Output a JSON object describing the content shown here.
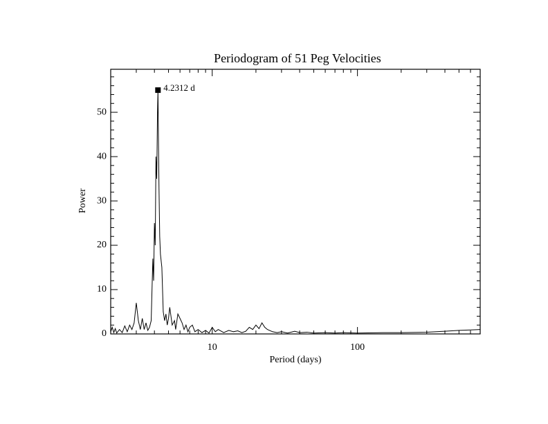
{
  "chart_data": {
    "type": "line",
    "title": "Periodogram of 51 Peg Velocities",
    "x_label": "Period (days)",
    "y_label": "Power",
    "xscale": "log",
    "xlim": [
      2,
      700
    ],
    "ylim": [
      0,
      59.7
    ],
    "xticks": [
      10,
      100
    ],
    "yticks": [
      0,
      10,
      20,
      30,
      40,
      50
    ],
    "xminorticks": [
      2,
      3,
      4,
      5,
      6,
      7,
      8,
      9,
      20,
      30,
      40,
      50,
      60,
      70,
      80,
      90,
      200,
      300,
      400,
      500,
      600,
      700
    ],
    "yminorticks": [
      2,
      4,
      6,
      8,
      12,
      14,
      16,
      18,
      22,
      24,
      26,
      28,
      32,
      34,
      36,
      38,
      42,
      44,
      46,
      48,
      52,
      54,
      56,
      58
    ],
    "series": [
      {
        "color": "#000000",
        "x": [
          2.0,
          2.05,
          2.1,
          2.15,
          2.2,
          2.3,
          2.4,
          2.5,
          2.6,
          2.7,
          2.8,
          2.9,
          3.0,
          3.05,
          3.1,
          3.2,
          3.3,
          3.4,
          3.5,
          3.6,
          3.7,
          3.8,
          3.9,
          3.95,
          4.0,
          4.05,
          4.1,
          4.15,
          4.2,
          4.2312,
          4.26,
          4.3,
          4.35,
          4.4,
          4.5,
          4.6,
          4.7,
          4.8,
          4.9,
          5.0,
          5.1,
          5.2,
          5.3,
          5.5,
          5.6,
          5.8,
          6.0,
          6.2,
          6.4,
          6.6,
          6.8,
          7.0,
          7.3,
          7.6,
          8.0,
          8.5,
          9,
          9.5,
          10,
          10.5,
          11,
          12,
          13,
          14,
          15,
          16,
          17,
          18,
          19,
          20,
          21,
          22,
          23,
          24,
          26,
          28,
          30,
          33,
          37,
          40,
          45,
          50,
          60,
          70,
          80,
          100,
          150,
          200,
          300,
          400,
          500,
          600,
          700
        ],
        "values": [
          0.5,
          1.5,
          0.3,
          1.2,
          0.2,
          1.0,
          0.3,
          1.8,
          0.5,
          2.0,
          1.0,
          2.5,
          7.0,
          5.0,
          3.0,
          1.0,
          3.5,
          1.0,
          2.5,
          0.8,
          1.5,
          3.0,
          17,
          12,
          25,
          20,
          40,
          35,
          50,
          55,
          45,
          33,
          22,
          18,
          15,
          5,
          3,
          4.5,
          2,
          3.5,
          6,
          4,
          2,
          3,
          1.0,
          4.5,
          3.5,
          2.5,
          1,
          2,
          0.5,
          1.5,
          2,
          0.5,
          1,
          0.3,
          0.8,
          0.2,
          1.5,
          0.5,
          1,
          0.3,
          0.8,
          0.5,
          0.7,
          0.3,
          0.6,
          1.5,
          1.0,
          2.0,
          1.2,
          2.5,
          1.5,
          1.0,
          0.5,
          0.3,
          0.5,
          0.2,
          0.6,
          0.3,
          0.4,
          0.2,
          0.3,
          0.2,
          0.3,
          0.2,
          0.3,
          0.3,
          0.4,
          0.6,
          0.8,
          0.9,
          1.0
        ]
      }
    ],
    "peak": {
      "x": 4.2312,
      "value": 55,
      "label": "4.2312 d"
    }
  }
}
